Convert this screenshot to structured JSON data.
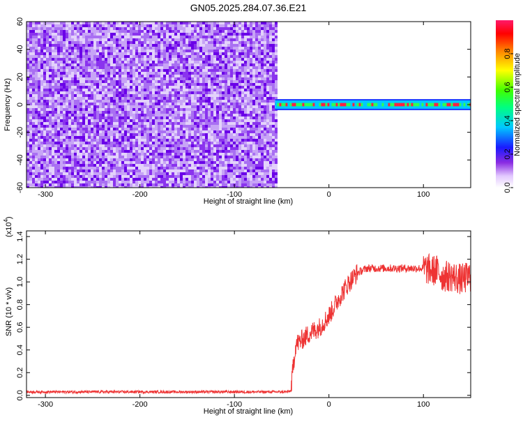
{
  "figure_title": "GN05.2025.284.07.36.E21",
  "colorbar": {
    "label": "Normalized spectral amplitude",
    "ticks": [
      "0.0",
      "0.2",
      "0.4",
      "0.6",
      "0.8"
    ],
    "tick_values": [
      0.0,
      0.2,
      0.4,
      0.6,
      0.8
    ],
    "range": [
      0,
      1
    ]
  },
  "chart_data": [
    {
      "type": "heatmap",
      "title": "",
      "xlabel": "Height of straight line (km)",
      "ylabel": "Frequency (Hz)",
      "xlim": [
        -320,
        150
      ],
      "ylim": [
        -60,
        60
      ],
      "xticks": [
        -300,
        -200,
        -100,
        0,
        100
      ],
      "yticks": [
        -60,
        -40,
        -20,
        0,
        20,
        40,
        60
      ],
      "xtick_labels": [
        "-300",
        "-200",
        "-100",
        "0",
        "100"
      ],
      "ytick_labels": [
        "-60",
        "-40",
        "-20",
        "0",
        "20",
        "40",
        "60"
      ],
      "regions": [
        {
          "x_range": [
            -320,
            -57
          ],
          "y_range": [
            -60,
            60
          ],
          "description": "broadband noise",
          "amplitude_range": [
            0.0,
            0.25
          ]
        },
        {
          "x_range": [
            -57,
            150
          ],
          "y_range": [
            -4,
            4
          ],
          "description": "narrow band centered at 0 Hz",
          "amplitude_range": [
            0.2,
            1.0
          ]
        }
      ],
      "noise_colors": [
        "#6a00e8",
        "#8a33ee",
        "#a970f2",
        "#c7a4f6",
        "#e3d2fb"
      ],
      "band_colors": [
        "#1a3cff",
        "#00c8ff",
        "#30ff50",
        "#ff2040"
      ]
    },
    {
      "type": "line",
      "title": "",
      "xlabel": "Height of straight line (km)",
      "ylabel": "SNR (10 * v/v)",
      "y_multiplier": "(x10",
      "y_multiplier_exp": "4",
      "y_multiplier_close": ")",
      "xlim": [
        -320,
        150
      ],
      "ylim": [
        -0.02,
        1.45
      ],
      "xticks": [
        -300,
        -200,
        -100,
        0,
        100
      ],
      "yticks": [
        0.0,
        0.2,
        0.4,
        0.6,
        0.8,
        1.0,
        1.2,
        1.4
      ],
      "xtick_labels": [
        "-300",
        "-200",
        "-100",
        "0",
        "100"
      ],
      "ytick_labels": [
        "0.0",
        "0.2",
        "0.4",
        "0.6",
        "0.8",
        "1.0",
        "1.2",
        "1.4"
      ],
      "color": "#ee3333",
      "grid": false,
      "series": [
        {
          "x": [
            -320,
            -300,
            -250,
            -200,
            -150,
            -100,
            -60,
            -45,
            -40,
            -38,
            -35,
            -30,
            -20,
            -10,
            0,
            10,
            20,
            30,
            40,
            50,
            60,
            70,
            80,
            90,
            100,
            110,
            115,
            120,
            130,
            140,
            150
          ],
          "y": [
            0.03,
            0.03,
            0.03,
            0.03,
            0.03,
            0.03,
            0.03,
            0.03,
            0.04,
            0.25,
            0.45,
            0.48,
            0.55,
            0.6,
            0.7,
            0.85,
            0.98,
            1.08,
            1.12,
            1.12,
            1.12,
            1.12,
            1.12,
            1.12,
            1.12,
            1.1,
            1.1,
            1.05,
            1.05,
            1.02,
            1.05
          ]
        }
      ]
    }
  ]
}
